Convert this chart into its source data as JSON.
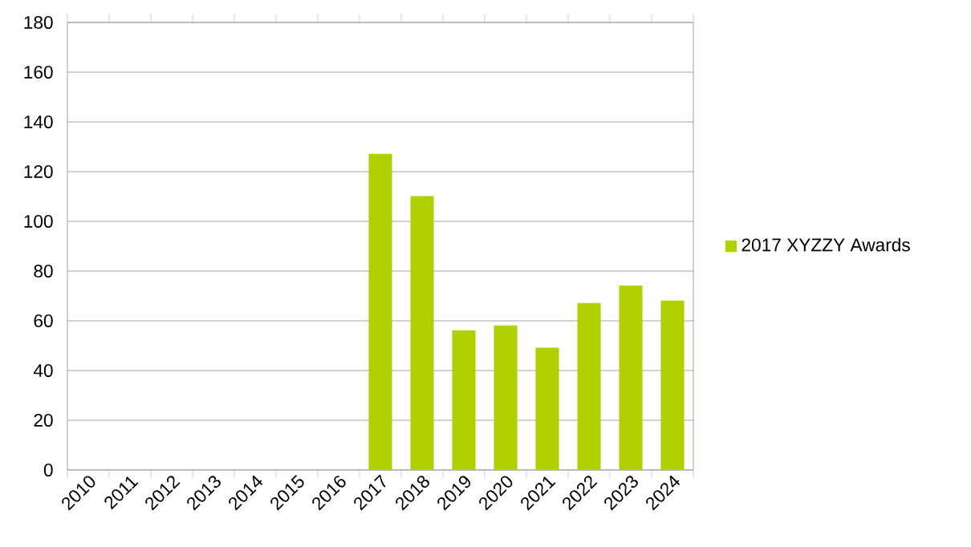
{
  "chart_data": {
    "type": "bar",
    "categories": [
      "2010",
      "2011",
      "2012",
      "2013",
      "2014",
      "2015",
      "2016",
      "2017",
      "2018",
      "2019",
      "2020",
      "2021",
      "2022",
      "2023",
      "2024"
    ],
    "series": [
      {
        "name": "2017 XYZZY Awards",
        "color": "#b0d000",
        "values": [
          null,
          null,
          null,
          null,
          null,
          null,
          null,
          127,
          110,
          56,
          58,
          49,
          67,
          74,
          68
        ]
      }
    ],
    "ylim": [
      0,
      180
    ],
    "yticks": [
      0,
      20,
      40,
      60,
      80,
      100,
      120,
      140,
      160,
      180
    ],
    "grid": "y",
    "legend": "right"
  }
}
